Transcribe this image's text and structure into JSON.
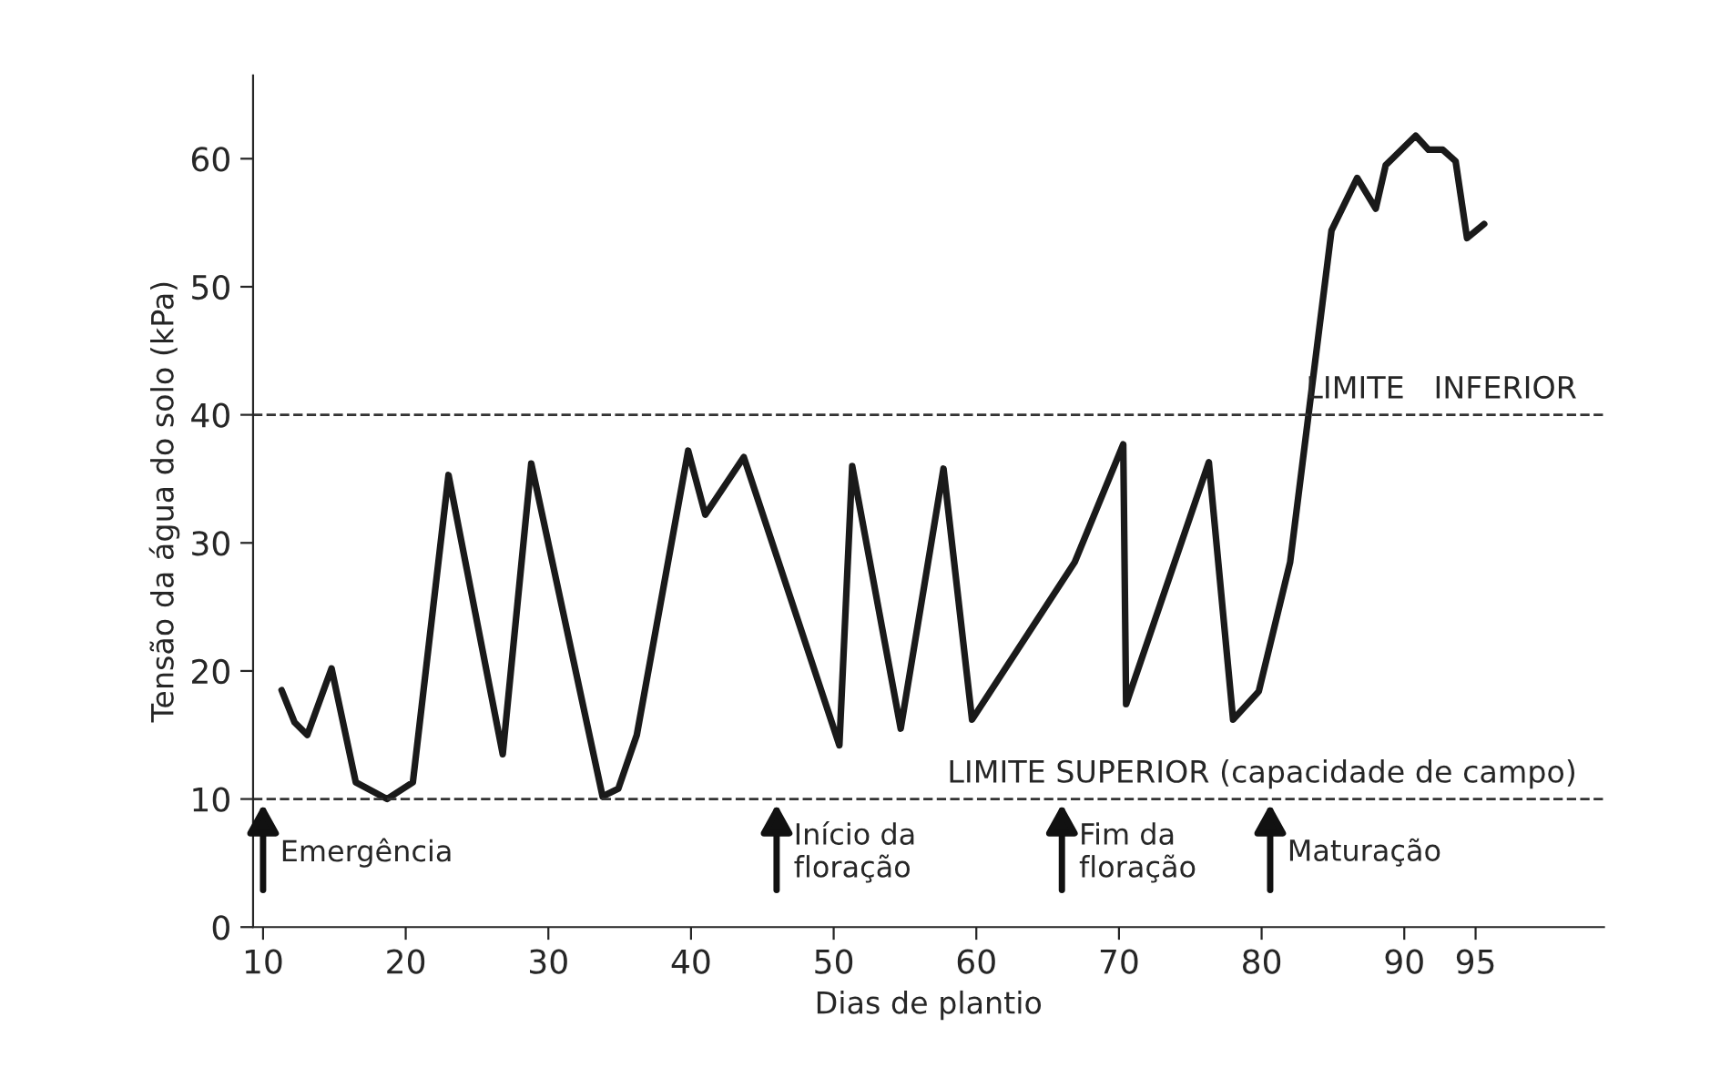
{
  "chart_data": {
    "type": "line",
    "xlabel": "Dias de plantio",
    "ylabel": "Tensão da água do solo (kPa)",
    "series": [
      {
        "color": "#1a1a1a",
        "x": [
          11.3,
          12.2,
          13.1,
          14.8,
          16.5,
          18.7,
          20.5,
          23.0,
          26.8,
          28.8,
          33.8,
          34.9,
          36.2,
          39.8,
          41.0,
          43.7,
          50.4,
          51.3,
          54.7,
          57.7,
          59.7,
          66.9,
          70.3,
          70.5,
          76.3,
          78.0,
          79.8,
          82.0,
          84.9,
          86.7,
          88.0,
          88.7,
          90.8,
          91.7,
          92.7,
          93.6,
          94.4,
          95.6
        ],
        "values": [
          18.5,
          16.0,
          15.0,
          20.2,
          11.3,
          10.0,
          11.3,
          35.3,
          13.5,
          36.2,
          10.2,
          10.8,
          15.0,
          37.2,
          32.2,
          36.7,
          14.2,
          36.0,
          15.5,
          35.8,
          16.2,
          28.5,
          37.7,
          17.4,
          36.3,
          16.2,
          18.4,
          28.5,
          54.4,
          58.5,
          56.1,
          59.5,
          61.8,
          60.7,
          60.7,
          59.8,
          53.8,
          54.9
        ]
      }
    ],
    "xlim": [
      9.3,
      104
    ],
    "ylim": [
      0,
      66.5
    ],
    "xticks": [
      10,
      20,
      30,
      40,
      50,
      60,
      70,
      80,
      90,
      95
    ],
    "yticks": [
      0,
      10,
      20,
      30,
      40,
      50,
      60
    ],
    "ref_lines": [
      {
        "axis": "y",
        "value": 40,
        "label": "LIMITE   INFERIOR",
        "line_style": "dashed",
        "color": "#333333"
      },
      {
        "axis": "y",
        "value": 10,
        "label": "LIMITE SUPERIOR (capacidade de campo)",
        "line_style": "dashed",
        "color": "#333333"
      }
    ],
    "annotations": [
      {
        "text": "Emergência",
        "x": 10,
        "y": 10
      },
      {
        "text": "Início da\nfloração",
        "x": 46,
        "y": 10
      },
      {
        "text": "Fim da\nfloração",
        "x": 66,
        "y": 10
      },
      {
        "text": "Maturação",
        "x": 80.6,
        "y": 10
      }
    ],
    "grid": false,
    "marker": "none",
    "line_style": "solid"
  }
}
